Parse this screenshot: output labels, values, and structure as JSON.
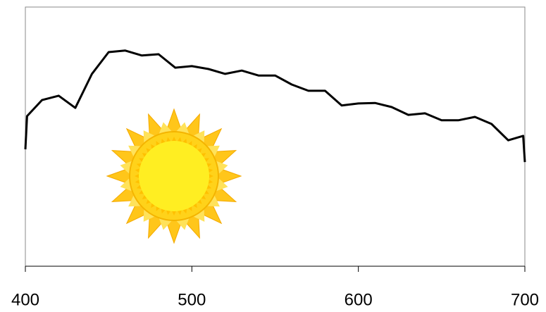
{
  "chart_data": {
    "type": "line",
    "x": [
      400,
      401,
      410,
      420,
      430,
      440,
      450,
      460,
      470,
      480,
      490,
      500,
      510,
      520,
      530,
      540,
      550,
      560,
      570,
      580,
      590,
      600,
      610,
      620,
      630,
      640,
      650,
      660,
      670,
      680,
      690,
      699,
      700
    ],
    "values": [
      45.1,
      57.9,
      64.1,
      65.8,
      61.1,
      74.2,
      82.6,
      83.2,
      81.3,
      81.8,
      76.6,
      77.2,
      76.1,
      74.2,
      75.5,
      73.6,
      73.6,
      70.1,
      67.7,
      67.7,
      62.0,
      62.8,
      63.0,
      61.4,
      58.4,
      59.0,
      56.3,
      56.3,
      57.6,
      54.9,
      48.6,
      50.3,
      40.2
    ],
    "color": "#000000",
    "xlim": [
      400,
      700
    ],
    "xticks": [
      400,
      500,
      600,
      700
    ],
    "ylim": [
      0,
      100
    ]
  }
}
